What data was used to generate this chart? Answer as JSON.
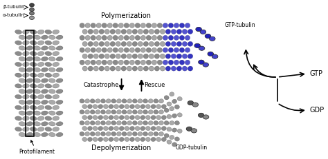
{
  "bg_color": "#ffffff",
  "labels": {
    "beta_tubulin": "β-tubulin",
    "alpha_tubulin": "α-tubulin",
    "protofilament": "Protofilament",
    "polymerization": "Polymerization",
    "depolymerization": "Depolymerization",
    "catastrophe": "Catastrophe",
    "rescue": "Rescue",
    "gtp_tubulin": "GTP-tubulin",
    "gdp_tubulin": "GDP-tubulin",
    "gtp": "GTP",
    "gdp": "GDP"
  },
  "colors": {
    "gray1": "#808080",
    "gray2": "#a0a0a0",
    "gray3": "#606060",
    "gray4": "#c0c0c0",
    "blue1": "#2222bb",
    "blue2": "#4444cc",
    "blue3": "#6666dd",
    "black": "#000000",
    "dark_gray": "#404040"
  },
  "figsize": [
    4.74,
    2.31
  ],
  "dpi": 100
}
